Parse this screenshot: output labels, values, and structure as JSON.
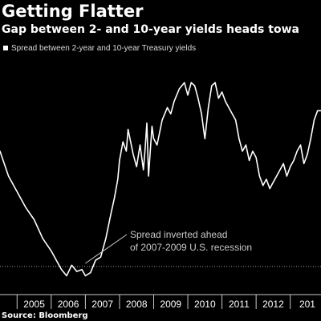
{
  "title": "Getting Flatter",
  "subtitle": "Gap between 2- and 10-year yields heads towa",
  "source": "Source: Bloomberg",
  "colors": {
    "background": "#000000",
    "line": "#ffffff",
    "text": "#ffffff",
    "muted": "#c8c8c8",
    "reference_line": "#9a9a9a"
  },
  "chart_data": {
    "type": "line",
    "title": "Getting Flatter",
    "subtitle": "Gap between 2- and 10-year yields heads towa",
    "legend": "top-left",
    "grid": false,
    "x_ticks": [
      "2005",
      "2006",
      "2007",
      "2008",
      "2009",
      "2010",
      "2011",
      "2012",
      "201"
    ],
    "xlim": [
      2004.5,
      2013.9
    ],
    "ylim": [
      -0.4,
      3.3
    ],
    "reference_line": {
      "y": 0,
      "style": "dotted"
    },
    "annotation": {
      "text": [
        "Spread inverted ahead",
        "of 2007-2009 U.S. recession"
      ],
      "points_to": [
        2007.0,
        0.05
      ]
    },
    "series": [
      {
        "name": "Spread between 2-year and 10-year Treasury yields",
        "x": [
          2004.5,
          2004.75,
          2005.0,
          2005.25,
          2005.5,
          2005.75,
          2006.0,
          2006.15,
          2006.3,
          2006.45,
          2006.6,
          2006.75,
          2006.9,
          2007.0,
          2007.15,
          2007.3,
          2007.45,
          2007.6,
          2007.75,
          2007.85,
          2007.95,
          2008.0,
          2008.1,
          2008.2,
          2008.25,
          2008.4,
          2008.5,
          2008.6,
          2008.7,
          2008.75,
          2008.8,
          2008.85,
          2008.95,
          2009.0,
          2009.1,
          2009.25,
          2009.4,
          2009.5,
          2009.6,
          2009.75,
          2009.9,
          2010.0,
          2010.1,
          2010.2,
          2010.3,
          2010.4,
          2010.5,
          2010.6,
          2010.7,
          2010.8,
          2010.9,
          2011.0,
          2011.1,
          2011.25,
          2011.4,
          2011.5,
          2011.6,
          2011.7,
          2011.8,
          2011.9,
          2012.0,
          2012.1,
          2012.2,
          2012.3,
          2012.4,
          2012.5,
          2012.6,
          2012.7,
          2012.8,
          2012.9,
          2013.0,
          2013.1,
          2013.2,
          2013.3,
          2013.4,
          2013.5,
          2013.6,
          2013.7,
          2013.8,
          2013.9
        ],
        "y": [
          1.85,
          1.45,
          1.2,
          0.95,
          0.75,
          0.45,
          0.25,
          0.1,
          -0.05,
          -0.15,
          0.02,
          -0.08,
          -0.05,
          -0.15,
          -0.1,
          0.1,
          0.15,
          0.45,
          0.85,
          1.1,
          1.4,
          1.7,
          2.0,
          1.85,
          2.2,
          1.8,
          1.6,
          1.95,
          1.55,
          1.9,
          2.3,
          1.45,
          2.25,
          2.05,
          1.95,
          2.35,
          2.55,
          2.45,
          2.65,
          2.85,
          2.95,
          2.75,
          2.95,
          2.9,
          2.7,
          2.45,
          2.05,
          2.55,
          2.9,
          2.95,
          2.7,
          2.8,
          2.65,
          2.5,
          2.35,
          2.05,
          1.85,
          1.95,
          1.7,
          1.85,
          1.75,
          1.45,
          1.3,
          1.4,
          1.25,
          1.35,
          1.45,
          1.55,
          1.65,
          1.45,
          1.6,
          1.7,
          1.85,
          1.95,
          1.65,
          1.8,
          2.05,
          2.35,
          2.5,
          2.5
        ]
      }
    ]
  }
}
